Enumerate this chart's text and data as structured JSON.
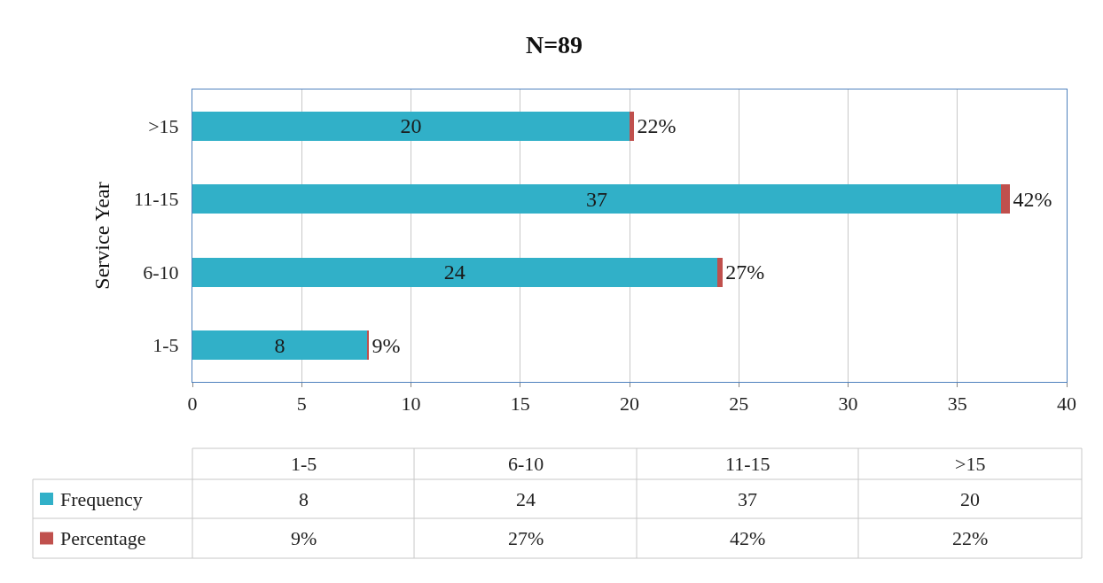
{
  "chart_data": {
    "type": "bar",
    "orientation": "horizontal",
    "stacked": true,
    "title": "N=89",
    "ylabel": "Service Year",
    "categories": [
      ">15",
      "11-15",
      "6-10",
      "1-5"
    ],
    "series": [
      {
        "name": "Frequency",
        "color": "#31b0c8",
        "values": [
          20,
          37,
          24,
          8
        ],
        "value_labels": [
          "20",
          "37",
          "24",
          "8"
        ]
      },
      {
        "name": "Percentage",
        "color": "#c0504d",
        "values": [
          0.22,
          0.42,
          0.27,
          0.09
        ],
        "value_labels": [
          "22%",
          "42%",
          "27%",
          "9%"
        ]
      }
    ],
    "xlim": [
      0,
      40
    ],
    "xticks": [
      0,
      5,
      10,
      15,
      20,
      25,
      30,
      35,
      40
    ],
    "grid": "x",
    "legend": "bottom"
  }
}
